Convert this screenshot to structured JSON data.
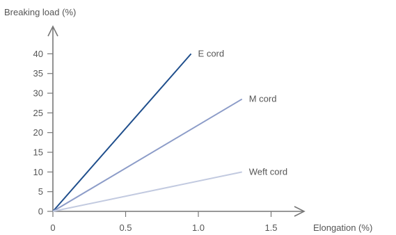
{
  "chart_data": {
    "type": "line",
    "xlabel": "Elongation (%)",
    "ylabel": "Breaking load (%)",
    "xlim": [
      0,
      1.5
    ],
    "ylim": [
      0,
      40
    ],
    "xticks": [
      {
        "value": 0,
        "label": "0"
      },
      {
        "value": 0.5,
        "label": "0.5"
      },
      {
        "value": 1.0,
        "label": "1.0"
      },
      {
        "value": 1.5,
        "label": "1.5"
      }
    ],
    "yticks": [
      {
        "value": 0,
        "label": "0"
      },
      {
        "value": 5,
        "label": "5"
      },
      {
        "value": 10,
        "label": "10"
      },
      {
        "value": 15,
        "label": "15"
      },
      {
        "value": 20,
        "label": "20"
      },
      {
        "value": 25,
        "label": "25"
      },
      {
        "value": 30,
        "label": "30"
      },
      {
        "value": 35,
        "label": "35"
      },
      {
        "value": 40,
        "label": "40"
      }
    ],
    "grid": false,
    "legend": "inline labels at line ends",
    "series": [
      {
        "name": "E cord",
        "color": "#1f4e8c",
        "x": [
          0,
          0.95
        ],
        "y": [
          0,
          40
        ]
      },
      {
        "name": "M cord",
        "color": "#8c9cc8",
        "x": [
          0,
          1.3
        ],
        "y": [
          0,
          28.5
        ]
      },
      {
        "name": "Weft cord",
        "color": "#c2cae0",
        "x": [
          0,
          1.3
        ],
        "y": [
          0,
          10
        ]
      }
    ],
    "axis_color": "#777777"
  }
}
